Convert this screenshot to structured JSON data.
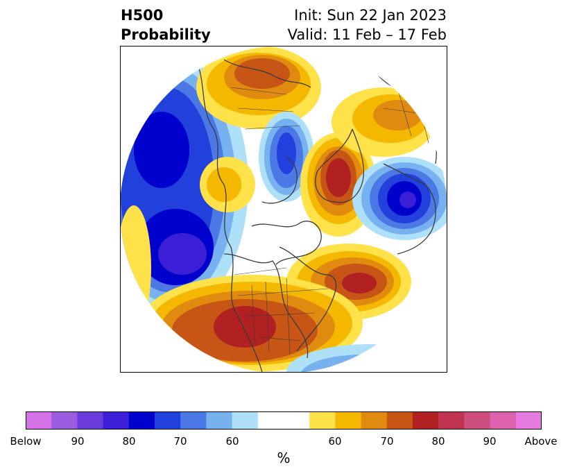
{
  "header": {
    "title_line1": "H500",
    "title_line2": "Probability",
    "init": "Init: Sun 22 Jan 2023",
    "valid": "Valid: 11 Feb – 17 Feb"
  },
  "colorbar": {
    "colors": [
      "#d572e6",
      "#9b5ce0",
      "#6a3adb",
      "#3a1fd6",
      "#0000cc",
      "#2240db",
      "#4c78e6",
      "#78b1f0",
      "#aee0fa",
      "#ffffff",
      "#ffffff",
      "#ffe24a",
      "#f5b800",
      "#e08b10",
      "#c65516",
      "#b12121",
      "#c0344f",
      "#cc4f80",
      "#dc62ad",
      "#e57bdf"
    ],
    "tick_labels": [
      "Below",
      "90",
      "80",
      "70",
      "60",
      "60",
      "70",
      "80",
      "90",
      "Above"
    ],
    "unit": "%"
  }
}
